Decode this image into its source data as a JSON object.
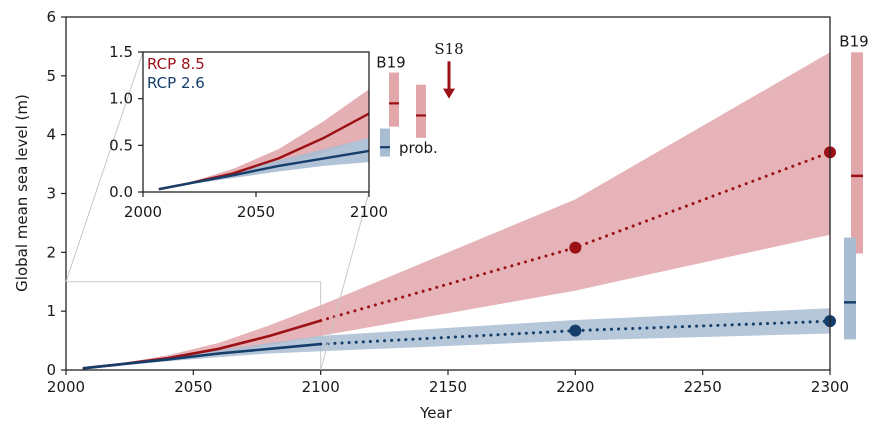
{
  "chart_data": [
    {
      "type": "line",
      "xlabel": "Year",
      "ylabel": "Global mean sea level (m)",
      "xlim": [
        2000,
        2300
      ],
      "ylim": [
        0,
        6
      ],
      "x_ticks": [
        2000,
        2050,
        2100,
        2150,
        2200,
        2250,
        2300
      ],
      "y_ticks": [
        0,
        1,
        2,
        3,
        4,
        5,
        6
      ],
      "colors": {
        "rcp85": "#9b1116",
        "rcp85_band": "#e2a7ab",
        "rcp26": "#163e6b",
        "rcp26_band": "#a9bdd2"
      },
      "series": [
        {
          "name": "RCP 8.5",
          "x": [
            2007,
            2020,
            2040,
            2060,
            2080,
            2100
          ],
          "values": [
            0.03,
            0.09,
            0.2,
            0.36,
            0.58,
            0.84
          ],
          "lower": [
            0.03,
            0.08,
            0.16,
            0.28,
            0.42,
            0.58
          ],
          "upper": [
            0.03,
            0.1,
            0.25,
            0.46,
            0.76,
            1.1
          ]
        },
        {
          "name": "RCP 8.5 (extended, dotted)",
          "x": [
            2100,
            2200,
            2300
          ],
          "values": [
            0.84,
            2.08,
            3.7
          ],
          "lower": [
            0.58,
            1.35,
            2.3
          ],
          "upper": [
            1.1,
            2.9,
            5.4
          ]
        },
        {
          "name": "RCP 2.6",
          "x": [
            2007,
            2020,
            2040,
            2060,
            2080,
            2100
          ],
          "values": [
            0.03,
            0.09,
            0.18,
            0.28,
            0.36,
            0.44
          ],
          "lower": [
            0.03,
            0.08,
            0.15,
            0.22,
            0.28,
            0.32
          ],
          "upper": [
            0.03,
            0.1,
            0.21,
            0.34,
            0.46,
            0.58
          ]
        },
        {
          "name": "RCP 2.6 (extended, dotted)",
          "x": [
            2100,
            2200,
            2300
          ],
          "values": [
            0.44,
            0.67,
            0.83
          ],
          "lower": [
            0.32,
            0.5,
            0.62
          ],
          "upper": [
            0.58,
            0.85,
            1.05
          ]
        }
      ],
      "markers": [
        {
          "series": "RCP 8.5",
          "x": 2200,
          "y": 2.08
        },
        {
          "series": "RCP 8.5",
          "x": 2300,
          "y": 3.7
        },
        {
          "series": "RCP 2.6",
          "x": 2200,
          "y": 0.67
        },
        {
          "series": "RCP 2.6",
          "x": 2300,
          "y": 0.83
        }
      ],
      "side_bars": [
        {
          "label": "B19",
          "color": "rcp85",
          "low": 1.98,
          "high": 5.4,
          "median": 3.3
        },
        {
          "color": "rcp26",
          "low": 0.52,
          "high": 2.25,
          "median": 1.15
        }
      ],
      "zoom_box": {
        "x": [
          2000,
          2100
        ],
        "y": [
          0,
          1.5
        ]
      }
    },
    {
      "type": "line",
      "xlim": [
        2000,
        2100
      ],
      "ylim": [
        0,
        1.5
      ],
      "x_ticks": [
        2000,
        2050,
        2100
      ],
      "y_ticks": [
        0.0,
        0.5,
        1.0,
        1.5
      ],
      "legend": [
        "RCP 8.5",
        "RCP 2.6"
      ],
      "legend_position": "top-left",
      "series": [
        {
          "name": "RCP 8.5",
          "x": [
            2007,
            2020,
            2040,
            2060,
            2080,
            2100
          ],
          "values": [
            0.03,
            0.09,
            0.2,
            0.36,
            0.58,
            0.84
          ],
          "lower": [
            0.03,
            0.08,
            0.16,
            0.28,
            0.42,
            0.58
          ],
          "upper": [
            0.03,
            0.1,
            0.25,
            0.46,
            0.76,
            1.1
          ]
        },
        {
          "name": "RCP 2.6",
          "x": [
            2007,
            2020,
            2040,
            2060,
            2080,
            2100
          ],
          "values": [
            0.03,
            0.09,
            0.18,
            0.28,
            0.36,
            0.44
          ],
          "lower": [
            0.03,
            0.08,
            0.15,
            0.22,
            0.28,
            0.32
          ],
          "upper": [
            0.03,
            0.1,
            0.21,
            0.34,
            0.46,
            0.58
          ]
        }
      ],
      "side_bars": [
        {
          "label": "B19",
          "color": "rcp85",
          "low": 0.7,
          "high": 1.28,
          "median": 0.95
        },
        {
          "color": "rcp85",
          "low": 0.58,
          "high": 1.15,
          "median": 0.82
        },
        {
          "label": "prob.",
          "color": "rcp26",
          "low": 0.38,
          "high": 0.68,
          "median": 0.48
        }
      ],
      "arrow": {
        "label": "S18",
        "from": 1.4,
        "to": 1.0
      }
    }
  ]
}
